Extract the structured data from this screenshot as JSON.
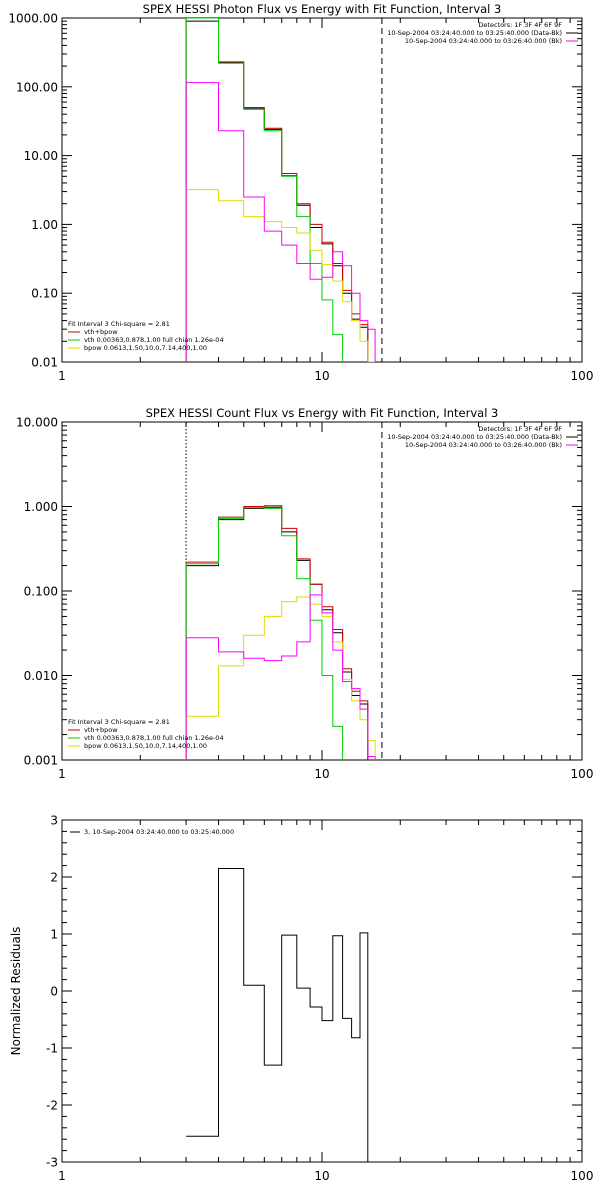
{
  "colors": {
    "data": "#000000",
    "model": "#cc0000",
    "vth": "#00cc00",
    "bpow": "#dddd00",
    "bk": "#ff00ff",
    "axis": "#000000"
  },
  "chart_data": [
    {
      "type": "line",
      "title": "SPEX HESSI Photon Flux vs Energy with Fit Function, Interval 3",
      "xlabel": "",
      "ylabel": "",
      "xscale": "log",
      "yscale": "log",
      "xlim": [
        1,
        100
      ],
      "ylim": [
        0.01,
        1000
      ],
      "xticks": [
        {
          "value": 1,
          "label": "1"
        },
        {
          "value": 10,
          "label": "10"
        },
        {
          "value": 100,
          "label": "100"
        }
      ],
      "yticks": [
        {
          "value": 0.01,
          "label": "0.01"
        },
        {
          "value": 0.1,
          "label": "0.10"
        },
        {
          "value": 1,
          "label": "1.00"
        },
        {
          "value": 10,
          "label": "10.00"
        },
        {
          "value": 100,
          "label": "100.00"
        },
        {
          "value": 1000,
          "label": "1000.00"
        }
      ],
      "vlines": [
        {
          "x": 3,
          "style": "dotted",
          "color": "#cc8800"
        },
        {
          "x": 17,
          "style": "dashed",
          "color": "#000000"
        }
      ],
      "info_lines": [
        "Detectors: 1F 3F 4F 6F 9F",
        "10-Sep-2004 03:24:40.000 to 03:25:40.000 (Data-Bk)",
        "10-Sep-2004 03:24:40.000 to 03:26:40.000 (Bk)"
      ],
      "fit_text": "Fit Interval 3   Chi-square = 2.81",
      "bin_edges": [
        3,
        4,
        5,
        6,
        7,
        8,
        9,
        10,
        11,
        12,
        13,
        14,
        15,
        16,
        17,
        18,
        19
      ],
      "series": [
        {
          "key": "data",
          "name": "",
          "color": "#000000",
          "values": [
            900,
            225,
            48,
            24,
            5.1,
            1.9,
            0.9,
            0.52,
            0.25,
            0.1,
            0.042,
            0.032,
            null,
            null,
            null,
            null
          ]
        },
        {
          "key": "model",
          "name": "vth+bpow",
          "color": "#cc0000",
          "values": [
            1000,
            230,
            50,
            25,
            5.5,
            2.0,
            1.0,
            0.55,
            0.27,
            0.11,
            0.05,
            0.035,
            null,
            null,
            null,
            null
          ]
        },
        {
          "key": "vth",
          "name": "vth 0.00363,0.878,1.00   full chian 1.26e-04",
          "color": "#00cc00",
          "values": [
            1000,
            220,
            47,
            23,
            5,
            1.3,
            0.27,
            0.08,
            0.025,
            null,
            null,
            null,
            null,
            null,
            null,
            null
          ]
        },
        {
          "key": "bpow",
          "name": "bpow 0.0613,1.50,10.0,7.14,400,1.00",
          "color": "#dddd00",
          "values": [
            3.2,
            2.2,
            1.3,
            1.1,
            0.9,
            0.75,
            0.42,
            0.26,
            0.15,
            0.075,
            0.04,
            0.02,
            0.01,
            null,
            null,
            null
          ]
        },
        {
          "key": "bk",
          "name": "",
          "color": "#ff00ff",
          "values": [
            115,
            23,
            2.5,
            0.8,
            0.5,
            0.27,
            0.16,
            0.17,
            0.4,
            0.25,
            0.1,
            0.04,
            0.03,
            null,
            null,
            null
          ]
        }
      ]
    },
    {
      "type": "line",
      "title": "SPEX HESSI Count Flux vs Energy with Fit Function, Interval 3",
      "xlabel": "",
      "ylabel": "",
      "xscale": "log",
      "yscale": "log",
      "xlim": [
        1,
        100
      ],
      "ylim": [
        0.001,
        10
      ],
      "xticks": [
        {
          "value": 1,
          "label": "1"
        },
        {
          "value": 10,
          "label": "10"
        },
        {
          "value": 100,
          "label": "100"
        }
      ],
      "yticks": [
        {
          "value": 0.001,
          "label": "0.001"
        },
        {
          "value": 0.01,
          "label": "0.010"
        },
        {
          "value": 0.1,
          "label": "0.100"
        },
        {
          "value": 1,
          "label": "1.000"
        },
        {
          "value": 10,
          "label": "10.000"
        }
      ],
      "vlines": [
        {
          "x": 3,
          "style": "dotted",
          "color": "#000000"
        },
        {
          "x": 17,
          "style": "dashed",
          "color": "#000000"
        }
      ],
      "info_lines": [
        "Detectors: 1F 3F 4F 6F 9F",
        "10-Sep-2004 03:24:40.000 to 03:25:40.000 (Data-Bk)",
        "10-Sep-2004 03:24:40.000 to 03:26:40.000 (Bk)"
      ],
      "fit_text": "Fit Interval 3   Chi-square = 2.81",
      "bin_edges": [
        3,
        4,
        5,
        6,
        7,
        8,
        9,
        10,
        11,
        12,
        13,
        14,
        15,
        16,
        17,
        18,
        19
      ],
      "series": [
        {
          "key": "data",
          "name": "",
          "color": "#000000",
          "values": [
            0.2,
            0.7,
            0.95,
            0.98,
            0.5,
            0.23,
            0.12,
            0.06,
            0.032,
            0.011,
            0.0058,
            0.0046,
            null,
            null,
            null,
            null
          ]
        },
        {
          "key": "model",
          "name": "vth+bpow",
          "color": "#cc0000",
          "values": [
            0.22,
            0.75,
            1.0,
            1.02,
            0.55,
            0.24,
            0.12,
            0.065,
            0.035,
            0.012,
            0.0065,
            0.005,
            null,
            null,
            null,
            null
          ]
        },
        {
          "key": "vth",
          "name": "vth 0.00363,0.878,1.00   full chian 1.26e-04",
          "color": "#00cc00",
          "values": [
            0.21,
            0.72,
            0.97,
            0.95,
            0.45,
            0.14,
            0.045,
            0.01,
            0.0025,
            null,
            null,
            null,
            null,
            null,
            null,
            null
          ]
        },
        {
          "key": "bpow",
          "name": "bpow 0.0613,1.50,10.0,7.14,400,1.00",
          "color": "#dddd00",
          "values": [
            0.0033,
            0.013,
            0.03,
            0.05,
            0.075,
            0.085,
            0.07,
            0.05,
            0.025,
            0.009,
            0.005,
            0.003,
            0.0017,
            null,
            null,
            null
          ]
        },
        {
          "key": "bk",
          "name": "",
          "color": "#ff00ff",
          "values": [
            0.028,
            0.019,
            0.016,
            0.015,
            0.017,
            0.025,
            0.09,
            0.055,
            0.02,
            0.0085,
            0.007,
            0.004,
            0.0011,
            null,
            null,
            null
          ]
        }
      ]
    },
    {
      "type": "line",
      "title": "",
      "xlabel": "",
      "ylabel": "Normalized Residuals",
      "xscale": "log",
      "yscale": "linear",
      "xlim": [
        1,
        100
      ],
      "ylim": [
        -3,
        3
      ],
      "xticks": [
        {
          "value": 1,
          "label": "1"
        },
        {
          "value": 10,
          "label": "10"
        },
        {
          "value": 100,
          "label": "100"
        }
      ],
      "yticks": [
        {
          "value": -3,
          "label": "-3"
        },
        {
          "value": -2,
          "label": "-2"
        },
        {
          "value": -1,
          "label": "-1"
        },
        {
          "value": 0,
          "label": "0"
        },
        {
          "value": 1,
          "label": "1"
        },
        {
          "value": 2,
          "label": "2"
        },
        {
          "value": 3,
          "label": "3"
        }
      ],
      "legend": "3, 10-Sep-2004 03:24:40.000 to 03:25:40.000",
      "bin_edges": [
        3,
        4,
        5,
        6,
        7,
        8,
        9,
        10,
        11,
        12,
        13,
        14,
        15,
        16,
        17
      ],
      "series": [
        {
          "key": "residuals",
          "name": "",
          "color": "#000000",
          "values": [
            -2.55,
            2.15,
            0.1,
            -1.3,
            0.98,
            0.05,
            -0.28,
            -0.52,
            0.97,
            -0.48,
            -0.82,
            1.02
          ]
        }
      ]
    }
  ]
}
